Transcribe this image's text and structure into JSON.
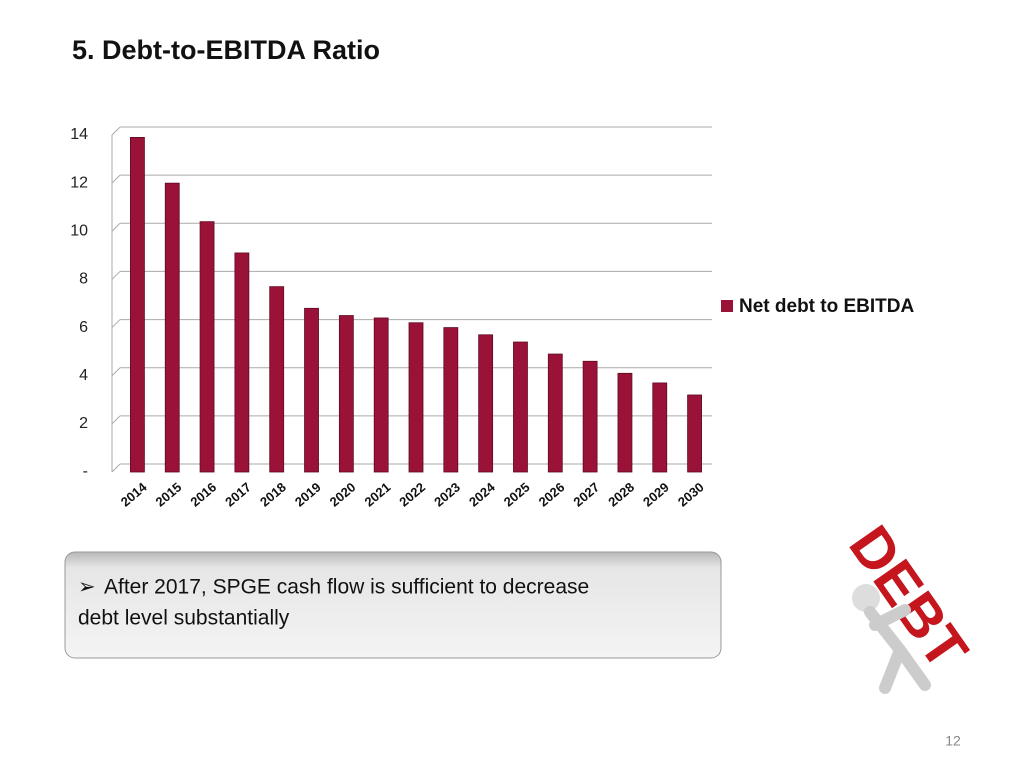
{
  "title": "5.  Debt-to-EBITDA Ratio",
  "chart_data": {
    "type": "bar",
    "categories": [
      "2014",
      "2015",
      "2016",
      "2017",
      "2018",
      "2019",
      "2020",
      "2021",
      "2022",
      "2023",
      "2024",
      "2025",
      "2026",
      "2027",
      "2028",
      "2029",
      "2030"
    ],
    "series": [
      {
        "name": "Net debt to EBITDA",
        "color": "#9b1238",
        "values": [
          13.9,
          12.0,
          10.4,
          9.1,
          7.7,
          6.8,
          6.5,
          6.4,
          6.2,
          6.0,
          5.7,
          5.4,
          4.9,
          4.6,
          4.1,
          3.7,
          3.2
        ]
      }
    ],
    "ylim": [
      0,
      14
    ],
    "yticks": [
      {
        "value": 0,
        "label": "-"
      },
      2,
      4,
      6,
      8,
      10,
      12,
      14
    ],
    "grid": true,
    "legend": "right"
  },
  "callout": {
    "bullet": "➢",
    "lines": [
      "After 2017, SPGE cash flow is sufficient to decrease",
      "debt level substantially"
    ]
  },
  "illustration_text": "DEBT",
  "page_number": "12"
}
